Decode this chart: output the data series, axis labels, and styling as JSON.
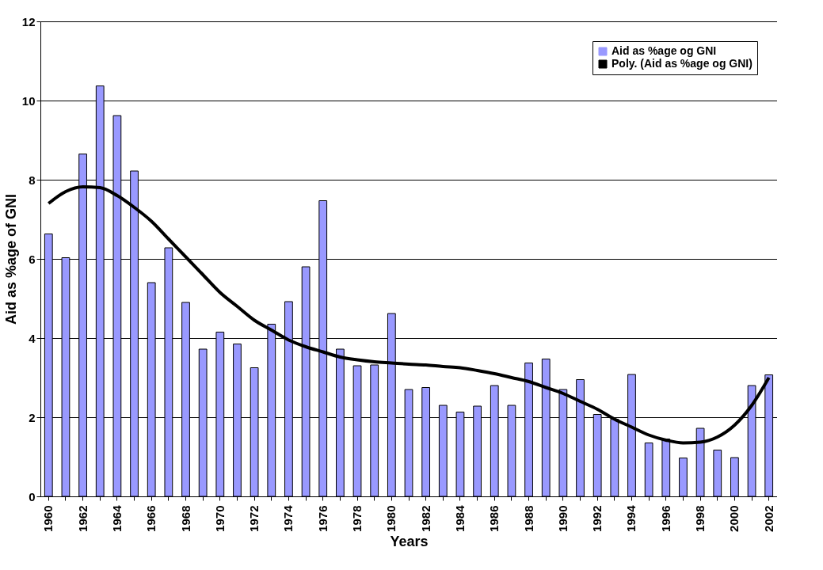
{
  "chart_data": {
    "type": "bar",
    "xlabel": "Years",
    "ylabel": "Aid as %age of GNI",
    "categories": [
      "1960",
      null,
      "1962",
      null,
      "1964",
      null,
      "1966",
      null,
      "1968",
      null,
      "1970",
      null,
      "1972",
      null,
      "1974",
      null,
      "1976",
      null,
      "1978",
      null,
      "1980",
      null,
      "1982",
      null,
      "1984",
      null,
      "1986",
      null,
      "1988",
      null,
      "1990",
      null,
      "1992",
      null,
      "1994",
      null,
      "1996",
      null,
      "1998",
      null,
      "2000",
      null,
      "2002"
    ],
    "series": [
      {
        "name": "Aid as %age og GNI",
        "color": "#9999ff",
        "values": [
          6.63,
          6.03,
          8.65,
          10.37,
          9.62,
          8.22,
          5.4,
          6.28,
          4.9,
          3.72,
          4.15,
          3.85,
          3.25,
          4.35,
          4.92,
          5.8,
          7.47,
          3.72,
          3.3,
          3.32,
          4.62,
          2.7,
          2.75,
          2.3,
          2.13,
          2.28,
          2.8,
          2.3,
          3.37,
          3.47,
          2.7,
          2.95,
          2.07,
          1.95,
          3.08,
          1.35,
          1.45,
          0.97,
          1.72,
          1.17,
          0.98,
          2.8,
          3.07
        ]
      },
      {
        "name": "Poly. (Aid as %age og GNI)",
        "type": "line",
        "color": "#000000",
        "values": [
          7.4,
          7.7,
          7.82,
          7.8,
          7.6,
          7.3,
          6.95,
          6.5,
          6.05,
          5.6,
          5.15,
          4.8,
          4.45,
          4.2,
          3.95,
          3.78,
          3.65,
          3.52,
          3.45,
          3.4,
          3.37,
          3.34,
          3.32,
          3.28,
          3.25,
          3.18,
          3.1,
          3.0,
          2.9,
          2.75,
          2.6,
          2.4,
          2.2,
          1.95,
          1.75,
          1.55,
          1.42,
          1.35,
          1.37,
          1.5,
          1.8,
          2.3,
          3.0
        ]
      }
    ],
    "ylim": [
      0,
      12
    ],
    "yticks": [
      0,
      2,
      4,
      6,
      8,
      10,
      12
    ],
    "grid": "y",
    "legend": "top right"
  }
}
